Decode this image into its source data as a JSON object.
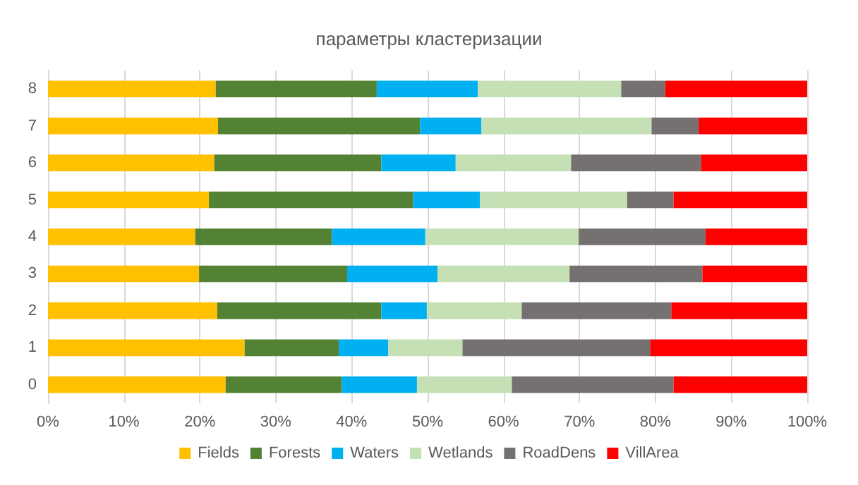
{
  "chart_data": {
    "type": "bar",
    "title": "параметры кластеризации",
    "orientation": "horizontal",
    "stacked": true,
    "categories": [
      "8",
      "7",
      "6",
      "5",
      "4",
      "3",
      "2",
      "1",
      "0"
    ],
    "series": [
      {
        "name": "Fields",
        "color": "#ffc000",
        "values": [
          22.1,
          22.4,
          21.9,
          21.2,
          19.4,
          19.9,
          22.3,
          25.9,
          23.4
        ]
      },
      {
        "name": "Forests",
        "color": "#548235",
        "values": [
          21.2,
          26.6,
          22.0,
          26.9,
          18.0,
          19.5,
          21.6,
          12.4,
          15.3
        ]
      },
      {
        "name": "Waters",
        "color": "#00b0f0",
        "values": [
          13.3,
          8.1,
          9.8,
          8.8,
          12.3,
          11.9,
          6.0,
          6.5,
          9.9
        ]
      },
      {
        "name": "Wetlands",
        "color": "#c5e0b4",
        "values": [
          18.9,
          22.4,
          15.2,
          19.4,
          20.2,
          17.4,
          12.5,
          9.8,
          12.5
        ]
      },
      {
        "name": "RoadDens",
        "color": "#767171",
        "values": [
          5.8,
          6.2,
          17.1,
          6.1,
          16.7,
          17.5,
          19.7,
          24.7,
          21.3
        ]
      },
      {
        "name": "VillArea",
        "color": "#ff0000",
        "values": [
          18.7,
          14.3,
          14.0,
          17.6,
          13.4,
          13.8,
          17.9,
          20.7,
          17.6
        ]
      }
    ],
    "xlim": [
      0,
      100
    ],
    "xticks": [
      {
        "value": 0,
        "label": "0%"
      },
      {
        "value": 10,
        "label": "10%"
      },
      {
        "value": 20,
        "label": "20%"
      },
      {
        "value": 30,
        "label": "30%"
      },
      {
        "value": 40,
        "label": "40%"
      },
      {
        "value": 50,
        "label": "50%"
      },
      {
        "value": 60,
        "label": "60%"
      },
      {
        "value": 70,
        "label": "70%"
      },
      {
        "value": 80,
        "label": "80%"
      },
      {
        "value": 90,
        "label": "90%"
      },
      {
        "value": 100,
        "label": "100%"
      }
    ],
    "grid": "x",
    "legend": "bottom"
  }
}
